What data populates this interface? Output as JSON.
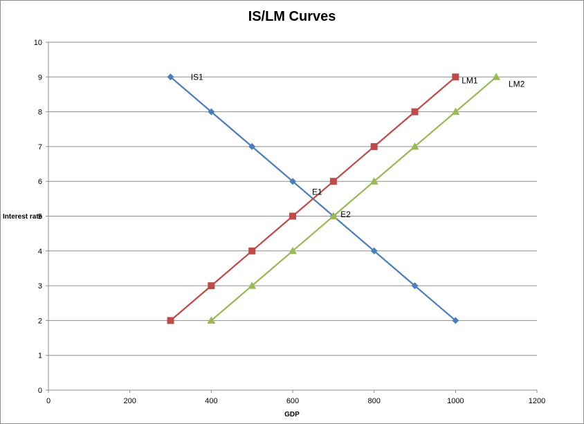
{
  "chart_data": {
    "type": "line",
    "title": "IS/LM Curves",
    "xlabel": "GDP",
    "ylabel": "Interest rate",
    "xlim": [
      0,
      1200
    ],
    "ylim": [
      0,
      10
    ],
    "xticks": [
      0,
      200,
      400,
      600,
      800,
      1000,
      1200
    ],
    "yticks": [
      0,
      1,
      2,
      3,
      4,
      5,
      6,
      7,
      8,
      9,
      10
    ],
    "grid": "horizontal",
    "series": [
      {
        "name": "IS1",
        "color": "#4a7ebb",
        "marker": "diamond",
        "x": [
          300,
          400,
          500,
          600,
          700,
          800,
          900,
          1000
        ],
        "y": [
          9,
          8,
          7,
          6,
          5,
          4,
          3,
          2
        ]
      },
      {
        "name": "LM1",
        "color": "#be4b48",
        "marker": "square",
        "x": [
          300,
          400,
          500,
          600,
          700,
          800,
          900,
          1000
        ],
        "y": [
          2,
          3,
          4,
          5,
          6,
          7,
          8,
          9
        ]
      },
      {
        "name": "LM2",
        "color": "#98b954",
        "marker": "triangle",
        "x": [
          400,
          500,
          600,
          700,
          800,
          900,
          1000,
          1100
        ],
        "y": [
          2,
          3,
          4,
          5,
          6,
          7,
          8,
          9
        ]
      }
    ],
    "annotations": [
      {
        "text": "IS1",
        "x": 365,
        "y": 9
      },
      {
        "text": "LM1",
        "x": 1035,
        "y": 8.9
      },
      {
        "text": "LM2",
        "x": 1150,
        "y": 8.8
      },
      {
        "text": "E1",
        "x": 660,
        "y": 5.7
      },
      {
        "text": "E2",
        "x": 730,
        "y": 5.05
      }
    ]
  }
}
